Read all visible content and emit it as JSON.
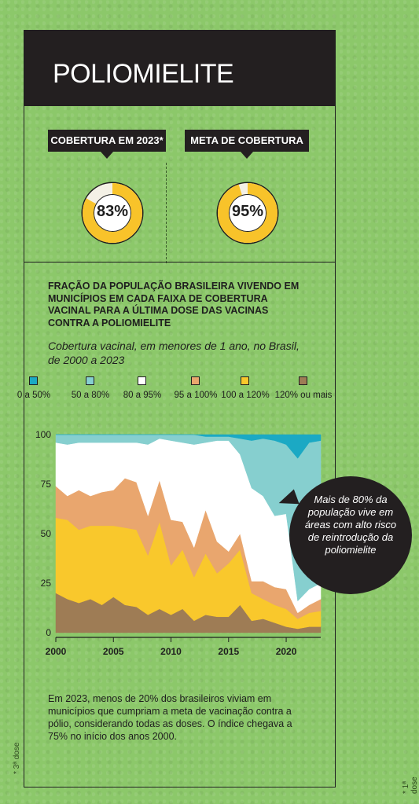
{
  "header": {
    "title": "POLIOMIELITE"
  },
  "stats": {
    "coverage_label": "COBERTURA EM 2023*",
    "coverage_value": "83%",
    "coverage_fraction": 0.83,
    "target_label": "META DE COBERTURA",
    "target_value": "95%",
    "target_fraction": 0.95
  },
  "colors": {
    "yellow": "#f8c32a",
    "yellow_light": "#fbe39a",
    "donut_bg": "#f4f1e6",
    "c0_50": "#1ba9c4",
    "c50_80": "#86cfcf",
    "c80_95": "#ffffff",
    "c95_100": "#e9a66e",
    "c100_120": "#f9c82c",
    "c120_plus": "#9e7c55",
    "bubble": "#231f20"
  },
  "chart_data": {
    "type": "area",
    "title": "FRAÇÃO DA POPULAÇÃO BRASILEIRA VIVENDO EM MUNICÍPIOS EM CADA FAIXA DE COBERTURA VACINAL PARA A ÚLTIMA DOSE DAS VACINAS CONTRA A POLIOMIELITE",
    "subtitle": "Cobertura vacinal, em menores de 1 ano, no Brasil, de 2000 a 2023",
    "xlabel": "",
    "ylabel": "",
    "ylim": [
      0,
      100
    ],
    "xlim": [
      2000,
      2023
    ],
    "x_ticks": [
      2000,
      2005,
      2010,
      2015,
      2020
    ],
    "y_ticks": [
      0,
      25,
      50,
      75,
      100
    ],
    "legend_placement": "top",
    "x": [
      2000,
      2001,
      2002,
      2003,
      2004,
      2005,
      2006,
      2007,
      2008,
      2009,
      2010,
      2011,
      2012,
      2013,
      2014,
      2015,
      2016,
      2017,
      2018,
      2019,
      2020,
      2021,
      2022,
      2023
    ],
    "series": [
      {
        "name": "120% ou mais",
        "values": [
          20,
          17,
          15,
          17,
          14,
          18,
          14,
          13,
          9,
          12,
          9,
          12,
          6,
          9,
          8,
          8,
          14,
          6,
          7,
          5,
          3,
          2,
          3,
          3
        ]
      },
      {
        "name": "100 a 120%",
        "values": [
          38,
          40,
          37,
          37,
          40,
          36,
          39,
          39,
          30,
          44,
          25,
          30,
          22,
          31,
          22,
          27,
          28,
          14,
          10,
          9,
          9,
          5,
          7,
          8
        ]
      },
      {
        "name": "95 a 100%",
        "values": [
          16,
          12,
          20,
          15,
          17,
          18,
          25,
          24,
          20,
          21,
          23,
          14,
          15,
          22,
          16,
          6,
          8,
          6,
          9,
          9,
          10,
          3,
          4,
          6
        ]
      },
      {
        "name": "80 a 95%",
        "values": [
          22,
          26,
          24,
          27,
          25,
          24,
          18,
          20,
          36,
          21,
          40,
          40,
          52,
          34,
          51,
          56,
          40,
          47,
          43,
          36,
          38,
          6,
          8,
          8
        ]
      },
      {
        "name": "50 a 80%",
        "values": [
          4,
          5,
          4,
          4,
          4,
          4,
          4,
          4,
          5,
          2,
          3,
          4,
          5,
          3,
          2,
          2,
          8,
          24,
          29,
          38,
          35,
          72,
          74,
          72
        ]
      },
      {
        "name": "0 a 50%",
        "values": [
          0,
          0,
          0,
          0,
          0,
          0,
          0,
          0,
          0,
          0,
          0,
          0,
          0,
          1,
          1,
          1,
          2,
          3,
          2,
          3,
          5,
          12,
          4,
          3
        ]
      }
    ],
    "legend_display_order": [
      "0 a 50%",
      "50 a 80%",
      "80 a 95%",
      "95 a 100%",
      "100 a 120%",
      "120% ou mais"
    ]
  },
  "annotation": {
    "text": "Mais de 80% da população vive em áreas com alto risco de reintrodução da poliomielite"
  },
  "note": {
    "text": "Em 2023, menos de 20% dos brasileiros viviam em municípios que cumpriam a meta de vacinação contra a pólio, considerando todas as doses. O índice chegava a 75% no início dos anos 2000."
  },
  "footnotes": {
    "left": "* 3ª dose",
    "right": "* 1ª dose"
  }
}
